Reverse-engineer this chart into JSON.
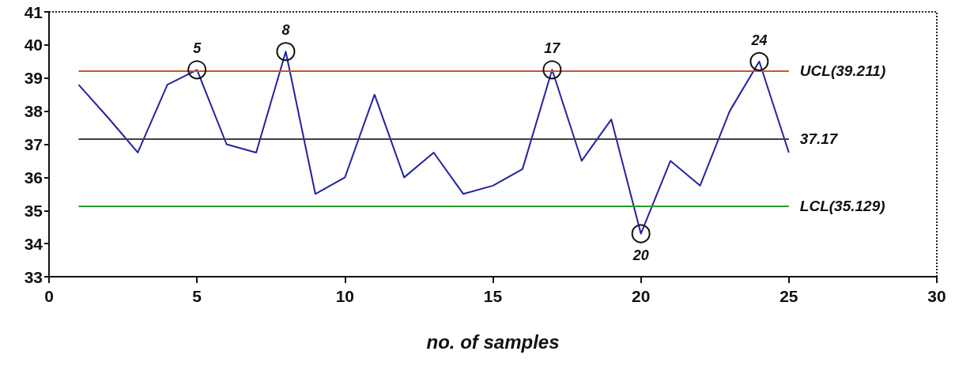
{
  "chart_data": {
    "type": "line",
    "xlabel": "no. of samples",
    "x": [
      1,
      2,
      3,
      4,
      5,
      6,
      7,
      8,
      9,
      10,
      11,
      12,
      13,
      14,
      15,
      16,
      17,
      18,
      19,
      20,
      21,
      22,
      23,
      24,
      25
    ],
    "values": [
      38.8,
      37.8,
      36.75,
      38.8,
      39.25,
      37.0,
      36.75,
      39.8,
      35.5,
      36.0,
      38.5,
      36.0,
      36.75,
      35.5,
      35.75,
      36.25,
      39.25,
      36.5,
      37.75,
      34.3,
      36.5,
      35.75,
      38.0,
      39.5,
      36.75
    ],
    "color": "#2323a0",
    "marker": "none",
    "line_style": "solid",
    "xlim": [
      0,
      30
    ],
    "xticks": [
      0,
      5,
      10,
      15,
      20,
      25,
      30
    ],
    "ylim": [
      33,
      41
    ],
    "yticks": [
      33,
      34,
      35,
      36,
      37,
      38,
      39,
      40,
      41
    ],
    "grid": false,
    "ref_lines": [
      {
        "axis": "y",
        "value": 39.211,
        "label": "UCL(39.211)",
        "color": "#c8572a"
      },
      {
        "axis": "y",
        "value": 37.17,
        "label": "37.17",
        "color": "#404040"
      },
      {
        "axis": "y",
        "value": 35.129,
        "label": "LCL(35.129)",
        "color": "#22a02a"
      }
    ],
    "annotations": [
      {
        "text": "5",
        "x": 5,
        "y": 39.25
      },
      {
        "text": "8",
        "x": 8,
        "y": 39.8
      },
      {
        "text": "17",
        "x": 17,
        "y": 39.25
      },
      {
        "text": "20",
        "x": 20,
        "y": 34.3
      },
      {
        "text": "24",
        "x": 24,
        "y": 39.5
      }
    ]
  }
}
